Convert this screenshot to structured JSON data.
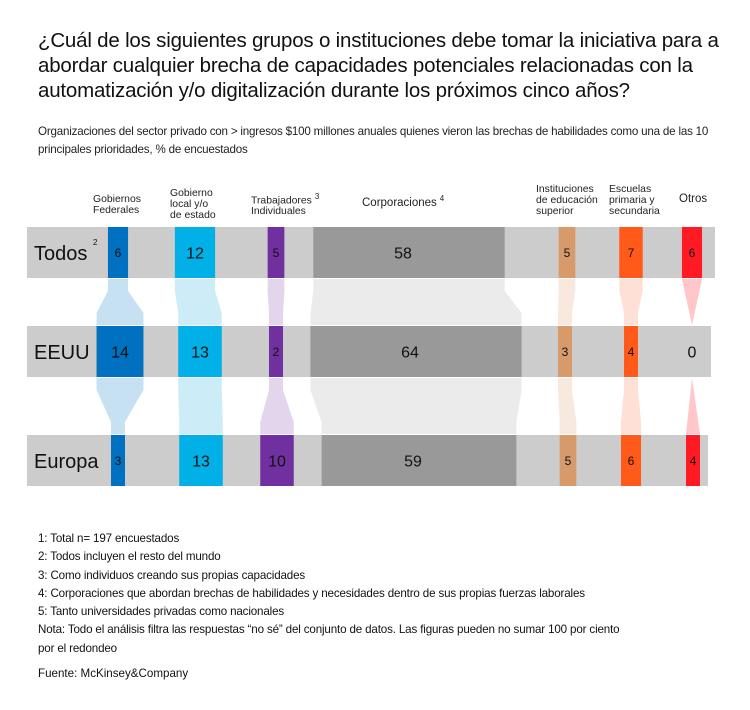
{
  "chart_data": {
    "type": "bar",
    "title": "¿Cuál de los siguientes grupos o instituciones debe tomar la iniciativa para a abordar cualquier brecha de capacidades potenciales relacionadas con la automatización y/o digitalización durante los próximos cinco años?",
    "subtitle": "Organizaciones del sector privado con > ingresos $100 millones anuales  quienes vieron las brechas de habilidades como una de las 10 principales prioridades, % de encuestados",
    "categories": [
      {
        "key": "fed",
        "label": "Gobiernos Federales",
        "lines": [
          "Gobiernos",
          "Federales"
        ],
        "sup": "",
        "color": "#0070c0",
        "flow": "#c6e2f2"
      },
      {
        "key": "local",
        "label": "Gobierno local y/o de estado",
        "lines": [
          "Gobierno",
          "local y/o",
          "de estado"
        ],
        "sup": "",
        "color": "#00b0e6",
        "flow": "#ccedf8"
      },
      {
        "key": "trab",
        "label": "Trabajadores Individuales",
        "lines": [
          "Trabajadores",
          "Individuales"
        ],
        "sup": "3",
        "color": "#7030a0",
        "flow": "#e2d5ec"
      },
      {
        "key": "corp",
        "label": "Corporaciones",
        "lines": [
          "Corporaciones"
        ],
        "sup": "4",
        "color": "#999999",
        "flow": "#ebebeb"
      },
      {
        "key": "educ",
        "label": "Instituciones de educación superior",
        "lines": [
          "Instituciones",
          "de educación",
          "superior"
        ],
        "sup": "",
        "color": "#d79b6b",
        "flow": "#f8e9de"
      },
      {
        "key": "esc",
        "label": "Escuelas primaria y secundaria",
        "lines": [
          "Escuelas",
          "primaria y",
          "secundaria"
        ],
        "sup": "",
        "color": "#ff5a1a",
        "flow": "#ffe0d6"
      },
      {
        "key": "otros",
        "label": "Otros",
        "lines": [
          "Otros"
        ],
        "sup": "",
        "color": "#ff1a24",
        "flow": "#ffc7c9"
      }
    ],
    "series": [
      {
        "name": "Todos",
        "sup": "2",
        "values": [
          6,
          12,
          5,
          58,
          5,
          7,
          6
        ]
      },
      {
        "name": "EEUU",
        "sup": "",
        "values": [
          14,
          13,
          2,
          64,
          3,
          4,
          0
        ]
      },
      {
        "name": "Europa",
        "sup": "",
        "values": [
          3,
          13,
          10,
          59,
          5,
          6,
          4
        ]
      }
    ],
    "unit": "% de encuestados",
    "track_color": "#cccccc",
    "legend": "top"
  },
  "notes": [
    "1: Total n= 197 encuestados",
    "2: Todos incluyen el resto del mundo",
    "3: Como individuos creando sus propias capacidades",
    "4: Corporaciones que abordan brechas de habilidades y necesidades dentro de sus propias fuerzas laborales",
    "5: Tanto universidades privadas como nacionales",
    "Nota: Todo el análisis filtra las respuestas “no sé” del conjunto de datos. Las figuras pueden no sumar 100  por ciento",
    "por el redondeo"
  ],
  "source": "Fuente: McKinsey&Company"
}
